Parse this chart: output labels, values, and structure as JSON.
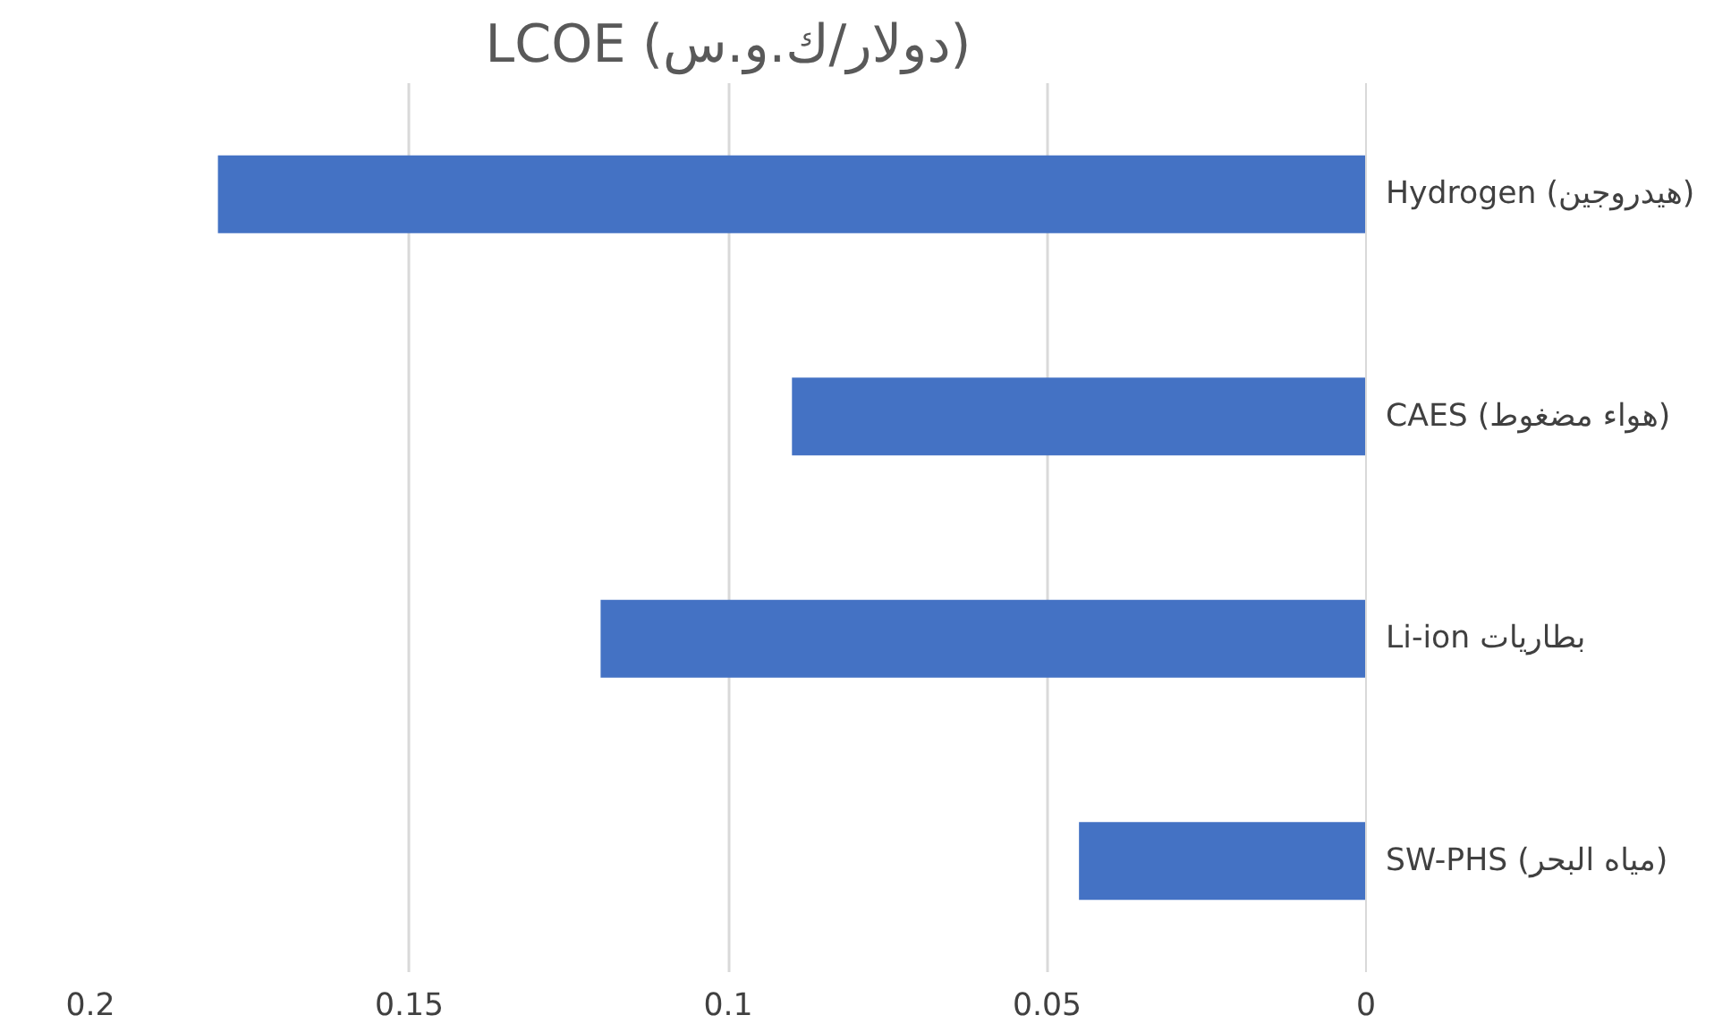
{
  "chart_data": {
    "type": "bar",
    "orientation": "horizontal",
    "title": "LCOE (دولار/ك.و.س)",
    "categories": [
      "Hydrogen (هيدروجين)",
      "CAES (هواء مضغوط)",
      "Li-ion بطاريات",
      "SW-PHS (مياه البحر)"
    ],
    "values": [
      0.18,
      0.09,
      0.12,
      0.045
    ],
    "color": "#4472c4",
    "xlim": [
      0.2,
      0
    ],
    "xticks": [
      {
        "value": 0.2,
        "label": "0.2"
      },
      {
        "value": 0.15,
        "label": "0.15"
      },
      {
        "value": 0.1,
        "label": "0.1"
      },
      {
        "value": 0.05,
        "label": "0.05"
      },
      {
        "value": 0,
        "label": "0"
      }
    ],
    "grid": "x"
  }
}
